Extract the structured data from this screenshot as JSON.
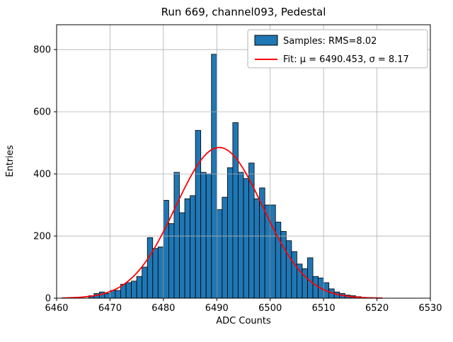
{
  "chart_data": {
    "type": "bar",
    "title": "Run 669, channel093, Pedestal",
    "xlabel": "ADC Counts",
    "ylabel": "Entries",
    "xlim": [
      6460,
      6530
    ],
    "ylim": [
      0,
      880
    ],
    "x_ticks": [
      6460,
      6470,
      6480,
      6490,
      6500,
      6510,
      6520,
      6530
    ],
    "y_ticks": [
      0,
      200,
      400,
      600,
      800
    ],
    "grid": true,
    "histogram": {
      "bin_start": 6466,
      "bin_width": 1,
      "counts": [
        8,
        15,
        20,
        15,
        25,
        25,
        45,
        50,
        55,
        70,
        100,
        195,
        160,
        165,
        315,
        240,
        405,
        275,
        320,
        330,
        540,
        405,
        400,
        785,
        285,
        325,
        420,
        565,
        405,
        385,
        435,
        320,
        355,
        300,
        300,
        245,
        215,
        185,
        150,
        110,
        95,
        130,
        70,
        65,
        50,
        30,
        20,
        15,
        10,
        8,
        5
      ]
    },
    "fit": {
      "type": "gaussian",
      "mu": 6490.453,
      "sigma": 8.17,
      "amplitude": 485,
      "draw_range": [
        6461,
        6521
      ],
      "color": "#ff0000"
    },
    "colors": {
      "bar_fill": "#1f77b4",
      "bar_edge": "#000000",
      "grid": "#b0b0b0",
      "spine": "#000000",
      "legend_border": "#b3b3b3"
    },
    "legend": {
      "position": "upper right",
      "entries": [
        {
          "label": "Samples: RMS=8.02",
          "type": "patch"
        },
        {
          "label": "Fit: μ = 6490.453, σ = 8.17",
          "type": "line"
        }
      ]
    }
  }
}
